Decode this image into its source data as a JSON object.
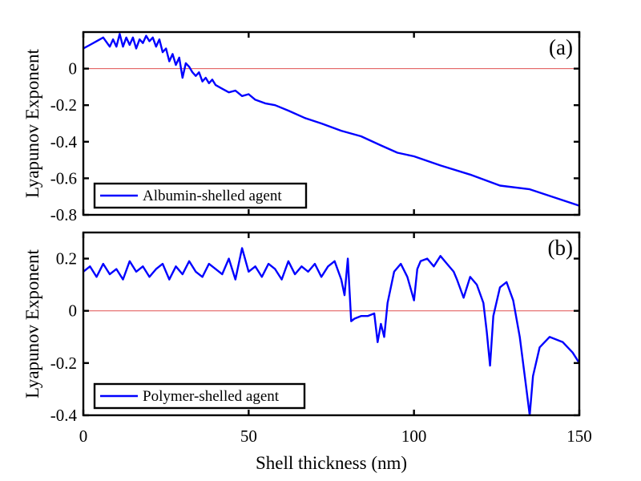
{
  "figure": {
    "xlabel": "Shell thickness (nm)",
    "x_ticks": [
      "0",
      "50",
      "100",
      "150"
    ],
    "colors": {
      "series": "#0000ff",
      "zero_line": "#e05050",
      "axes": "#000000"
    }
  },
  "chart_data": [
    {
      "type": "line",
      "panel_label": "(a)",
      "ylabel": "Lyapunov Exponent",
      "xlim": [
        0,
        150
      ],
      "ylim": [
        -0.8,
        0.2
      ],
      "y_ticks": [
        "0",
        "-0.2",
        "-0.4",
        "-0.6",
        "-0.8"
      ],
      "legend": "Albumin-shelled agent",
      "legend_position": "bottom-left",
      "reference_line": 0,
      "series": [
        {
          "name": "Albumin-shelled agent",
          "x": [
            0,
            2,
            4,
            6,
            8,
            9,
            10,
            11,
            12,
            13,
            14,
            15,
            16,
            17,
            18,
            19,
            20,
            21,
            22,
            23,
            24,
            25,
            26,
            27,
            28,
            29,
            30,
            31,
            32,
            33,
            34,
            35,
            36,
            37,
            38,
            39,
            40,
            42,
            44,
            46,
            48,
            50,
            52,
            55,
            58,
            62,
            67,
            72,
            78,
            84,
            90,
            95,
            100,
            108,
            117,
            126,
            135,
            150
          ],
          "y": [
            0.11,
            0.13,
            0.15,
            0.17,
            0.12,
            0.16,
            0.12,
            0.19,
            0.12,
            0.17,
            0.13,
            0.17,
            0.11,
            0.16,
            0.14,
            0.18,
            0.15,
            0.17,
            0.12,
            0.16,
            0.09,
            0.11,
            0.04,
            0.08,
            0.02,
            0.06,
            -0.05,
            0.03,
            0.01,
            -0.02,
            -0.04,
            -0.02,
            -0.07,
            -0.05,
            -0.08,
            -0.06,
            -0.09,
            -0.11,
            -0.13,
            -0.12,
            -0.15,
            -0.14,
            -0.17,
            -0.19,
            -0.2,
            -0.23,
            -0.27,
            -0.3,
            -0.34,
            -0.37,
            -0.42,
            -0.46,
            -0.48,
            -0.53,
            -0.58,
            -0.64,
            -0.66,
            -0.75
          ]
        }
      ]
    },
    {
      "type": "line",
      "panel_label": "(b)",
      "ylabel": "Lyapunov Exponent",
      "xlim": [
        0,
        150
      ],
      "ylim": [
        -0.4,
        0.3
      ],
      "y_ticks": [
        "0.2",
        "0",
        "-0.2",
        "-0.4"
      ],
      "legend": "Polymer-shelled agent",
      "legend_position": "bottom-left",
      "reference_line": 0,
      "series": [
        {
          "name": "Polymer-shelled agent",
          "x": [
            0,
            2,
            4,
            6,
            8,
            10,
            12,
            14,
            16,
            18,
            20,
            22,
            24,
            26,
            28,
            30,
            32,
            34,
            36,
            38,
            40,
            42,
            44,
            46,
            48,
            50,
            52,
            54,
            56,
            58,
            60,
            62,
            64,
            66,
            68,
            70,
            72,
            74,
            76,
            78,
            79,
            80,
            81,
            82,
            84,
            86,
            88,
            89,
            90,
            91,
            92,
            94,
            96,
            98,
            100,
            101,
            102,
            104,
            106,
            108,
            110,
            112,
            113,
            115,
            117,
            119,
            121,
            122,
            123,
            124,
            126,
            128,
            130,
            132,
            134,
            135,
            136,
            138,
            141,
            145,
            148,
            150
          ],
          "y": [
            0.15,
            0.17,
            0.13,
            0.18,
            0.14,
            0.16,
            0.12,
            0.19,
            0.15,
            0.17,
            0.13,
            0.16,
            0.18,
            0.12,
            0.17,
            0.14,
            0.19,
            0.15,
            0.13,
            0.18,
            0.16,
            0.14,
            0.2,
            0.12,
            0.24,
            0.15,
            0.17,
            0.13,
            0.18,
            0.16,
            0.12,
            0.19,
            0.14,
            0.17,
            0.15,
            0.18,
            0.13,
            0.17,
            0.19,
            0.12,
            0.06,
            0.2,
            -0.04,
            -0.03,
            -0.02,
            -0.02,
            -0.01,
            -0.12,
            -0.05,
            -0.1,
            0.03,
            0.15,
            0.18,
            0.13,
            0.04,
            0.16,
            0.19,
            0.2,
            0.17,
            0.21,
            0.18,
            0.15,
            0.12,
            0.05,
            0.13,
            0.1,
            0.03,
            -0.08,
            -0.21,
            -0.02,
            0.09,
            0.11,
            0.04,
            -0.1,
            -0.3,
            -0.4,
            -0.25,
            -0.14,
            -0.1,
            -0.12,
            -0.16,
            -0.2
          ]
        }
      ]
    }
  ]
}
